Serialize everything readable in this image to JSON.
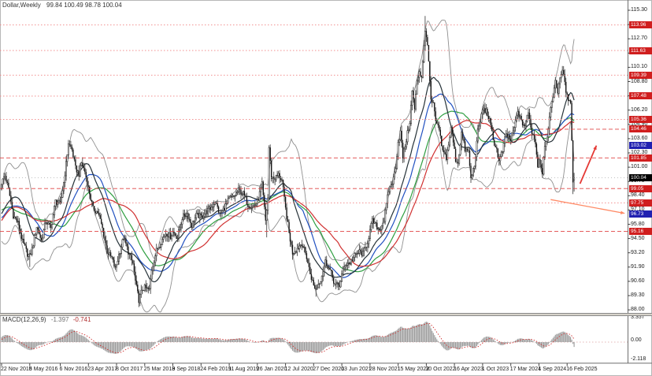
{
  "app": {
    "title_symbol": "Dollar,Weekly",
    "title_ohlc": "99.84 100.49 98.78 100.04"
  },
  "chart_data": {
    "type": "candlestick",
    "symbol": "Dollar",
    "timeframe": "Weekly",
    "current_bar": {
      "open": 99.84,
      "high": 100.49,
      "low": 98.78,
      "close": 100.04
    },
    "current_price": 100.04,
    "y_axis": {
      "ticks": [
        "115.30",
        "114.00",
        "112.70",
        "111.40",
        "110.10",
        "108.80",
        "107.50",
        "106.20",
        "104.90",
        "103.60",
        "102.30",
        "101.00",
        "99.70",
        "98.40",
        "97.10",
        "95.80",
        "94.50",
        "93.20",
        "91.90",
        "90.60",
        "89.30",
        "88.00"
      ],
      "top_price": 115.3,
      "bottom_price": 88.0
    },
    "x_axis": {
      "labels": [
        "22 Nov 2015",
        "8 May 2016",
        "6 Nov 2016",
        "23 Apr 2017",
        "8 Oct 2017",
        "25 Mar 2018",
        "9 Sep 2018",
        "24 Feb 2019",
        "11 Aug 2019",
        "26 Jan 2020",
        "12 Jul 2020",
        "27 Dec 2020",
        "13 Jun 2021",
        "28 Nov 2021",
        "15 May 2022",
        "30 Oct 2022",
        "16 Apr 2023",
        "1 Oct 2023",
        "17 Mar 2024",
        "1 Sep 2024",
        "16 Feb 2025"
      ],
      "label_weeks": [
        0,
        24,
        50,
        74,
        98,
        122,
        146,
        170,
        194,
        218,
        242,
        266,
        290,
        314,
        338,
        362,
        386,
        410,
        434,
        458,
        482
      ]
    },
    "levels": [
      {
        "price": 113.96,
        "label": "113.96",
        "style": "dotted"
      },
      {
        "price": 111.63,
        "label": "111.63",
        "style": "dotted"
      },
      {
        "price": 109.39,
        "label": "109.39",
        "style": "dotted"
      },
      {
        "price": 107.48,
        "label": "107.48",
        "style": "dotted"
      },
      {
        "price": 105.36,
        "label": "105.36",
        "style": "dotted"
      },
      {
        "price": 104.46,
        "label": "104.46",
        "style": "dashed",
        "partial": true
      },
      {
        "price": 101.85,
        "label": "101.85",
        "style": "dashed"
      },
      {
        "price": 99.05,
        "label": "99.05",
        "style": "dashed"
      },
      {
        "price": 97.75,
        "label": "97.75",
        "style": "dotted"
      },
      {
        "price": 95.16,
        "label": "95.16",
        "style": "dashed"
      }
    ],
    "price_markers": [
      {
        "price": 103.02,
        "label": "103.02",
        "style": "blue"
      },
      {
        "price": 96.73,
        "label": "96.73",
        "style": "blue"
      },
      {
        "price": 100.04,
        "label": "100.04",
        "style": "black"
      }
    ],
    "arrows": [
      {
        "name": "bullish-projection-arrow",
        "color_key": "arrow_up",
        "width": 1.8,
        "from": {
          "week": 493,
          "price": 99.5
        },
        "to": {
          "week": 507,
          "price": 102.97
        }
      },
      {
        "name": "bearish-projection-arrow",
        "color_key": "arrow_down",
        "width": 1.3,
        "from": {
          "week": 468,
          "price": 98.05
        },
        "to": {
          "week": 531,
          "price": 96.8
        }
      }
    ],
    "indicators": {
      "bollinger": {
        "period": 20,
        "deviation": 2
      },
      "moving_averages": [
        {
          "name": "ma-45",
          "period": 45,
          "color": "#2e9e40"
        },
        {
          "name": "ma-30",
          "period": 30,
          "color": "#2050c0"
        },
        {
          "name": "ma-60",
          "period": 60,
          "color": "#d03030"
        }
      ],
      "macd": {
        "label": "MACD(12,26,9)",
        "fast": 12,
        "slow": 26,
        "signal": 9,
        "current_macd": "-1.397",
        "current_signal": "-0.741",
        "axis_labels": [
          "3.357",
          "0.00",
          "-2.118"
        ]
      }
    },
    "colors": {
      "bull": "#ffffff",
      "bear": "#161616",
      "wick": "#4a4a4a",
      "bb_band": "#8f8f8f",
      "bb_mid": "#263238",
      "level_red": "#e04545",
      "level_red_light": "#f08080",
      "label_red_bg": "#d01e1e",
      "label_blue_bg": "#2020b0",
      "label_black_bg": "#000000",
      "macd_hist": "#9e9e9e",
      "macd_signal": "#d03232",
      "arrow_up": "#e53935",
      "arrow_down": "#ff8a65",
      "current_price_line": "#aaaaaa"
    },
    "prehistory_keyframes": [
      [
        -200,
        79.8
      ],
      [
        -190,
        81.3
      ],
      [
        -180,
        82.6
      ],
      [
        -170,
        80.7
      ],
      [
        -160,
        79.9
      ],
      [
        -150,
        81.6
      ],
      [
        -140,
        83.2
      ],
      [
        -130,
        80.9
      ],
      [
        -120,
        80.1
      ],
      [
        -110,
        81.9
      ],
      [
        -100,
        80.4
      ],
      [
        -90,
        81.6
      ],
      [
        -80,
        84.8
      ],
      [
        -70,
        87.6
      ],
      [
        -60,
        89.9
      ],
      [
        -52,
        92.3
      ],
      [
        -46,
        97.4
      ],
      [
        -40,
        97.8
      ],
      [
        -35,
        100.2
      ],
      [
        -30,
        97.8
      ],
      [
        -25,
        94.8
      ],
      [
        -20,
        95.9
      ],
      [
        -15,
        96.3
      ],
      [
        -10,
        95.1
      ],
      [
        -5,
        97.3
      ]
    ],
    "series_keyframes": [
      [
        0,
        99.6
      ],
      [
        3,
        100.2
      ],
      [
        6,
        99.0
      ],
      [
        10,
        96.6
      ],
      [
        14,
        95.9
      ],
      [
        18,
        94.2
      ],
      [
        22,
        93.1
      ],
      [
        24,
        92.9
      ],
      [
        26,
        93.5
      ],
      [
        30,
        95.6
      ],
      [
        34,
        94.3
      ],
      [
        38,
        96.1
      ],
      [
        42,
        95.4
      ],
      [
        46,
        97.9
      ],
      [
        50,
        97.6
      ],
      [
        53,
        99.6
      ],
      [
        55,
        101.3
      ],
      [
        57,
        103.2
      ],
      [
        60,
        102.6
      ],
      [
        63,
        100.9
      ],
      [
        66,
        100.4
      ],
      [
        68,
        101.4
      ],
      [
        71,
        100.6
      ],
      [
        74,
        99.1
      ],
      [
        78,
        97.2
      ],
      [
        82,
        96.9
      ],
      [
        86,
        95.4
      ],
      [
        90,
        93.3
      ],
      [
        94,
        92.7
      ],
      [
        97,
        91.7
      ],
      [
        100,
        93.0
      ],
      [
        104,
        94.6
      ],
      [
        108,
        93.3
      ],
      [
        112,
        92.2
      ],
      [
        114,
        90.6
      ],
      [
        117,
        88.9
      ],
      [
        120,
        89.9
      ],
      [
        122,
        90.0
      ],
      [
        126,
        89.8
      ],
      [
        128,
        91.7
      ],
      [
        132,
        93.4
      ],
      [
        136,
        94.2
      ],
      [
        140,
        95.0
      ],
      [
        144,
        94.7
      ],
      [
        146,
        95.1
      ],
      [
        150,
        94.6
      ],
      [
        154,
        96.4
      ],
      [
        158,
        96.8
      ],
      [
        162,
        95.7
      ],
      [
        166,
        96.6
      ],
      [
        170,
        96.5
      ],
      [
        174,
        96.9
      ],
      [
        178,
        97.2
      ],
      [
        182,
        97.9
      ],
      [
        186,
        96.7
      ],
      [
        190,
        97.3
      ],
      [
        194,
        98.1
      ],
      [
        198,
        98.3
      ],
      [
        202,
        98.9
      ],
      [
        206,
        98.6
      ],
      [
        210,
        97.6
      ],
      [
        214,
        97.4
      ],
      [
        218,
        97.8
      ],
      [
        222,
        99.4
      ],
      [
        225,
        96.1
      ],
      [
        227,
        98.2
      ],
      [
        228,
        102.8
      ],
      [
        230,
        100.1
      ],
      [
        233,
        100.0
      ],
      [
        236,
        100.3
      ],
      [
        239,
        99.8
      ],
      [
        242,
        97.2
      ],
      [
        245,
        95.0
      ],
      [
        248,
        93.2
      ],
      [
        252,
        93.6
      ],
      [
        256,
        94.1
      ],
      [
        260,
        92.8
      ],
      [
        263,
        91.3
      ],
      [
        266,
        90.2
      ],
      [
        268,
        89.9
      ],
      [
        272,
        90.8
      ],
      [
        276,
        92.4
      ],
      [
        280,
        91.6
      ],
      [
        284,
        90.3
      ],
      [
        288,
        90.2
      ],
      [
        290,
        91.2
      ],
      [
        293,
        92.2
      ],
      [
        297,
        92.3
      ],
      [
        301,
        92.9
      ],
      [
        305,
        93.3
      ],
      [
        308,
        93.1
      ],
      [
        312,
        94.2
      ],
      [
        314,
        95.2
      ],
      [
        316,
        96.1
      ],
      [
        319,
        95.7
      ],
      [
        322,
        95.3
      ],
      [
        326,
        96.2
      ],
      [
        330,
        98.9
      ],
      [
        334,
        99.9
      ],
      [
        336,
        101.1
      ],
      [
        338,
        103.3
      ],
      [
        340,
        104.2
      ],
      [
        342,
        101.9
      ],
      [
        345,
        103.5
      ],
      [
        348,
        105.2
      ],
      [
        350,
        107.9
      ],
      [
        352,
        106.3
      ],
      [
        354,
        108.7
      ],
      [
        356,
        109.8
      ],
      [
        358,
        109.2
      ],
      [
        360,
        112.2
      ],
      [
        361,
        113.3
      ],
      [
        363,
        112.1
      ],
      [
        364,
        110.9
      ],
      [
        366,
        106.9
      ],
      [
        368,
        106.8
      ],
      [
        370,
        105.0
      ],
      [
        372,
        104.8
      ],
      [
        374,
        103.6
      ],
      [
        376,
        102.4
      ],
      [
        379,
        101.9
      ],
      [
        381,
        103.1
      ],
      [
        383,
        104.5
      ],
      [
        385,
        103.3
      ],
      [
        387,
        101.7
      ],
      [
        389,
        101.4
      ],
      [
        392,
        104.1
      ],
      [
        395,
        102.6
      ],
      [
        398,
        102.4
      ],
      [
        400,
        99.9
      ],
      [
        403,
        101.2
      ],
      [
        406,
        104.2
      ],
      [
        409,
        105.7
      ],
      [
        410,
        106.3
      ],
      [
        413,
        106.1
      ],
      [
        416,
        105.2
      ],
      [
        419,
        103.5
      ],
      [
        422,
        102.6
      ],
      [
        424,
        101.5
      ],
      [
        427,
        102.5
      ],
      [
        430,
        104.0
      ],
      [
        434,
        103.5
      ],
      [
        437,
        104.6
      ],
      [
        440,
        106.1
      ],
      [
        443,
        105.1
      ],
      [
        446,
        104.8
      ],
      [
        449,
        105.9
      ],
      [
        452,
        104.2
      ],
      [
        455,
        103.3
      ],
      [
        457,
        101.1
      ],
      [
        458,
        101.8
      ],
      [
        461,
        100.6
      ],
      [
        463,
        103.1
      ],
      [
        466,
        104.4
      ],
      [
        469,
        107.1
      ],
      [
        472,
        108.7
      ],
      [
        474,
        107.9
      ],
      [
        476,
        109.3
      ],
      [
        478,
        109.8
      ],
      [
        480,
        108.7
      ],
      [
        482,
        107.4
      ],
      [
        483,
        106.8
      ],
      [
        484,
        107.3
      ],
      [
        485,
        106.6
      ],
      [
        486,
        103.6
      ],
      [
        487,
        99.84
      ],
      [
        488,
        100.04
      ]
    ],
    "special": {
      "highs": {
        "222": 99.95,
        "228": 103.0,
        "361": 114.78,
        "440": 106.52,
        "478": 110.18
      },
      "lows": {
        "24": 91.9,
        "117": 88.25,
        "226": 94.61,
        "268": 89.2,
        "400": 99.57,
        "461": 100.15,
        "487": 98.55
      }
    },
    "weeks_total": 489
  }
}
